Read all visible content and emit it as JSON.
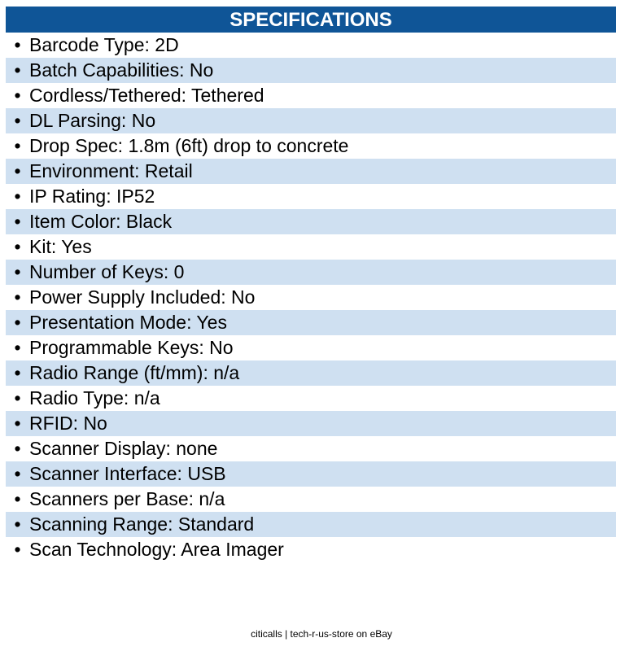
{
  "header": {
    "title": "SPECIFICATIONS",
    "color": "#0f5597"
  },
  "specs": [
    "Barcode Type: 2D",
    "Batch Capabilities: No",
    "Cordless/Tethered: Tethered",
    "DL Parsing: No",
    "Drop Spec: 1.8m (6ft) drop to concrete",
    "Environment: Retail",
    "IP Rating: IP52",
    "Item Color: Black",
    "Kit: Yes",
    "Number of Keys: 0",
    "Power Supply Included: No",
    "Presentation Mode: Yes",
    "Programmable Keys: No",
    "Radio Range (ft/mm): n/a",
    "Radio Type: n/a",
    "RFID: No",
    "Scanner Display: none",
    "Scanner Interface: USB",
    "Scanners per Base: n/a",
    "Scanning Range: Standard",
    "Scan Technology: Area Imager"
  ],
  "row_alt_color": "#cfe0f1",
  "footer": {
    "text": "citicalls | tech-r-us-store on eBay"
  }
}
